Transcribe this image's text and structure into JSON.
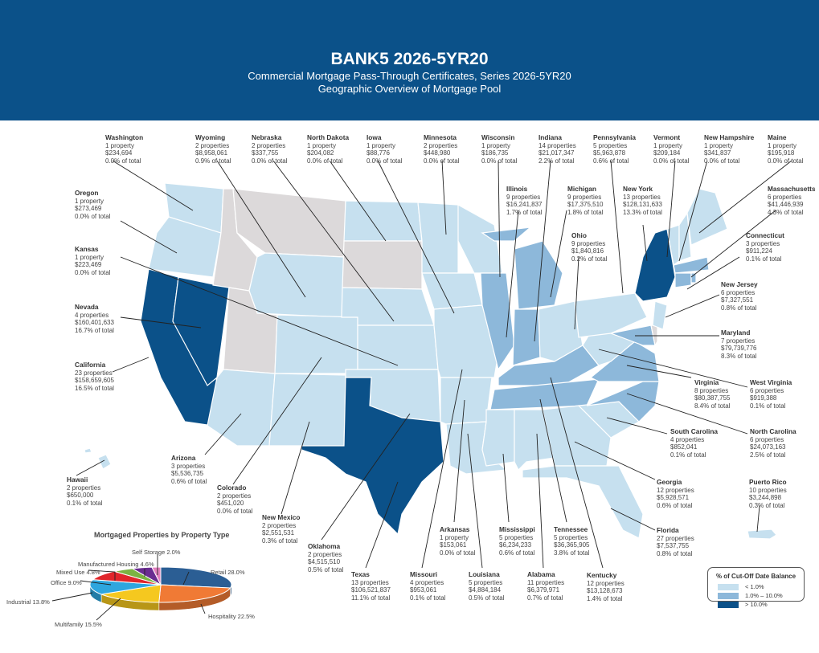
{
  "header": {
    "title": "BANK5 2026-5YR20",
    "subtitle1": "Commercial Mortgage Pass-Through Certificates, Series 2026-5YR20",
    "subtitle2": "Geographic Overview of Mortgage Pool"
  },
  "colors": {
    "header": "#0b5189",
    "low": "#c6e0ef",
    "mid": "#8db8da",
    "high": "#0b5189",
    "none": "#dcd9da"
  },
  "states": [
    {
      "name": "Washington",
      "props": "1 property",
      "bal": "$234,694",
      "pct": "0.0% of total",
      "tier": "low"
    },
    {
      "name": "Wyoming",
      "props": "2 properties",
      "bal": "$8,958,061",
      "pct": "0.9% of total",
      "tier": "low"
    },
    {
      "name": "Nebraska",
      "props": "2 properties",
      "bal": "$337,755",
      "pct": "0.0% of total",
      "tier": "low"
    },
    {
      "name": "North Dakota",
      "props": "1 property",
      "bal": "$204,082",
      "pct": "0.0% of total",
      "tier": "low"
    },
    {
      "name": "Iowa",
      "props": "1 property",
      "bal": "$88,776",
      "pct": "0.0% of total",
      "tier": "low"
    },
    {
      "name": "Minnesota",
      "props": "2 properties",
      "bal": "$448,980",
      "pct": "0.0% of total",
      "tier": "low"
    },
    {
      "name": "Wisconsin",
      "props": "1 property",
      "bal": "$186,735",
      "pct": "0.0% of total",
      "tier": "low"
    },
    {
      "name": "Indiana",
      "props": "14 properties",
      "bal": "$21,017,347",
      "pct": "2.2% of total",
      "tier": "mid"
    },
    {
      "name": "Pennsylvania",
      "props": "5 properties",
      "bal": "$5,963,878",
      "pct": "0.6% of total",
      "tier": "low"
    },
    {
      "name": "Vermont",
      "props": "1 property",
      "bal": "$209,184",
      "pct": "0.0% of total",
      "tier": "low"
    },
    {
      "name": "New Hampshire",
      "props": "1 property",
      "bal": "$341,837",
      "pct": "0.0% of total",
      "tier": "low"
    },
    {
      "name": "Maine",
      "props": "1 property",
      "bal": "$195,918",
      "pct": "0.0% of total",
      "tier": "low"
    },
    {
      "name": "Oregon",
      "props": "1 property",
      "bal": "$273,469",
      "pct": "0.0% of total",
      "tier": "low"
    },
    {
      "name": "Kansas",
      "props": "1 property",
      "bal": "$223,469",
      "pct": "0.0% of total",
      "tier": "low"
    },
    {
      "name": "Nevada",
      "props": "4 properties",
      "bal": "$160,401,633",
      "pct": "16.7% of total",
      "tier": "high"
    },
    {
      "name": "California",
      "props": "23 properties",
      "bal": "$158,659,605",
      "pct": "16.5% of total",
      "tier": "high"
    },
    {
      "name": "Illinois",
      "props": "9 properties",
      "bal": "$16,241,837",
      "pct": "1.7% of total",
      "tier": "mid"
    },
    {
      "name": "Michigan",
      "props": "9 properties",
      "bal": "$17,375,510",
      "pct": "1.8% of total",
      "tier": "mid"
    },
    {
      "name": "New York",
      "props": "13 properties",
      "bal": "$128,131,633",
      "pct": "13.3% of total",
      "tier": "high"
    },
    {
      "name": "Massachusetts",
      "props": "6 properties",
      "bal": "$41,446,939",
      "pct": "4.3% of total",
      "tier": "mid"
    },
    {
      "name": "Ohio",
      "props": "9 properties",
      "bal": "$1,840,816",
      "pct": "0.2% of total",
      "tier": "low"
    },
    {
      "name": "Connecticut",
      "props": "3 properties",
      "bal": "$911,224",
      "pct": "0.1% of total",
      "tier": "low"
    },
    {
      "name": "New Jersey",
      "props": "6 properties",
      "bal": "$7,327,551",
      "pct": "0.8% of total",
      "tier": "low"
    },
    {
      "name": "Maryland",
      "props": "7 properties",
      "bal": "$79,739,776",
      "pct": "8.3% of total",
      "tier": "mid"
    },
    {
      "name": "Virginia",
      "props": "8 properties",
      "bal": "$80,387,755",
      "pct": "8.4% of total",
      "tier": "mid"
    },
    {
      "name": "West Virginia",
      "props": "6 properties",
      "bal": "$919,388",
      "pct": "0.1% of total",
      "tier": "low"
    },
    {
      "name": "South Carolina",
      "props": "4 properties",
      "bal": "$852,041",
      "pct": "0.1% of total",
      "tier": "low"
    },
    {
      "name": "North Carolina",
      "props": "6 properties",
      "bal": "$24,073,163",
      "pct": "2.5% of total",
      "tier": "mid"
    },
    {
      "name": "Georgia",
      "props": "12 properties",
      "bal": "$5,928,571",
      "pct": "0.6% of total",
      "tier": "low"
    },
    {
      "name": "Puerto Rico",
      "props": "10 properties",
      "bal": "$3,244,898",
      "pct": "0.3% of total",
      "tier": "low"
    },
    {
      "name": "Florida",
      "props": "27 properties",
      "bal": "$7,537,755",
      "pct": "0.8% of total",
      "tier": "low"
    },
    {
      "name": "Arizona",
      "props": "3 properties",
      "bal": "$5,536,735",
      "pct": "0.6% of total",
      "tier": "low"
    },
    {
      "name": "Colorado",
      "props": "2 properties",
      "bal": "$451,020",
      "pct": "0.0% of total",
      "tier": "low"
    },
    {
      "name": "New Mexico",
      "props": "2 properties",
      "bal": "$2,551,531",
      "pct": "0.3% of total",
      "tier": "low"
    },
    {
      "name": "Oklahoma",
      "props": "2 properties",
      "bal": "$4,515,510",
      "pct": "0.5% of total",
      "tier": "low"
    },
    {
      "name": "Hawaii",
      "props": "2 properties",
      "bal": "$650,000",
      "pct": "0.1% of total",
      "tier": "low"
    },
    {
      "name": "Arkansas",
      "props": "1 property",
      "bal": "$153,061",
      "pct": "0.0% of total",
      "tier": "low"
    },
    {
      "name": "Mississippi",
      "props": "5 properties",
      "bal": "$6,234,233",
      "pct": "0.6% of total",
      "tier": "low"
    },
    {
      "name": "Tennessee",
      "props": "5 properties",
      "bal": "$36,365,905",
      "pct": "3.8% of total",
      "tier": "mid"
    },
    {
      "name": "Texas",
      "props": "13 properties",
      "bal": "$106,521,837",
      "pct": "11.1% of total",
      "tier": "high"
    },
    {
      "name": "Missouri",
      "props": "4 properties",
      "bal": "$953,061",
      "pct": "0.1% of total",
      "tier": "low"
    },
    {
      "name": "Louisiana",
      "props": "5 properties",
      "bal": "$4,884,184",
      "pct": "0.5% of total",
      "tier": "low"
    },
    {
      "name": "Alabama",
      "props": "11 properties",
      "bal": "$6,379,971",
      "pct": "0.7% of total",
      "tier": "low"
    },
    {
      "name": "Kentucky",
      "props": "12 properties",
      "bal": "$13,128,673",
      "pct": "1.4% of total",
      "tier": "mid"
    }
  ],
  "pie": {
    "title": "Mortgaged Properties by Property Type",
    "slices": [
      {
        "label": "Retail 28.0%",
        "value": 28.0,
        "color": "#2b5e94"
      },
      {
        "label": "Hospitality 22.5%",
        "value": 22.5,
        "color": "#f07a35"
      },
      {
        "label": "Multifamily 15.5%",
        "value": 15.5,
        "color": "#f5c81f"
      },
      {
        "label": "Industrial 13.8%",
        "value": 13.8,
        "color": "#2ea6df"
      },
      {
        "label": "Office 9.0%",
        "value": 9.0,
        "color": "#e1262b"
      },
      {
        "label": "Mixed Use 4.8%",
        "value": 4.8,
        "color": "#7cb342"
      },
      {
        "label": "Manufactured Housing 4.6%",
        "value": 4.6,
        "color": "#6a2c91"
      },
      {
        "label": "Self Storage 2.0%",
        "value": 2.0,
        "color": "#e47fbf"
      }
    ]
  },
  "legend": {
    "title": "% of Cut-Off Date Balance",
    "items": [
      {
        "label": "< 1.0%",
        "color": "#c6e0ef"
      },
      {
        "label": "1.0% – 10.0%",
        "color": "#8db8da"
      },
      {
        "label": "> 10.0%",
        "color": "#0b5189"
      }
    ]
  }
}
